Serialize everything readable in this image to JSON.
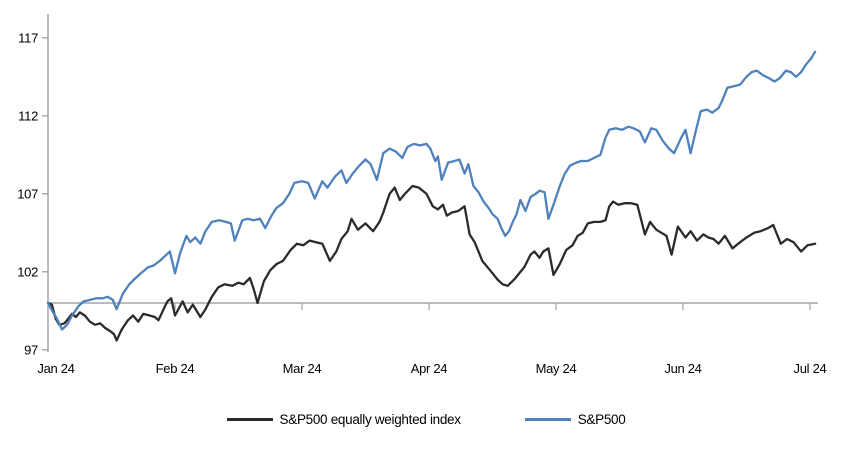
{
  "colors": {
    "equal_weight_line": "#2b2b2b",
    "sp500_line": "#4f81bd",
    "axis": "#a0a0a0",
    "baseline": "#a6a6a6",
    "text": "#000000",
    "background": "#ffffff"
  },
  "chart_data": {
    "type": "line",
    "title": "",
    "xlabel": "",
    "ylabel": "",
    "x_axis": {
      "unit": "months since Jan 2024",
      "tick_labels": [
        "Jan 24",
        "Feb 24",
        "Mar 24",
        "Apr 24",
        "May 24",
        "Jun 24",
        "Jul 24"
      ],
      "tick_positions_months": [
        0,
        1,
        2,
        3,
        4,
        5,
        6
      ]
    },
    "y_axis": {
      "tick_labels": [
        "97",
        "102",
        "107",
        "112",
        "117"
      ],
      "ticks": [
        97,
        102,
        107,
        112,
        117
      ],
      "range": [
        97,
        118.5
      ],
      "reference_line": 100
    },
    "grid": false,
    "legend_position": "bottom-center",
    "series": [
      {
        "name": "S&P500 equally weighted index",
        "color": "#2b2b2b",
        "points": [
          [
            0,
            100
          ],
          [
            0.03,
            99.9
          ],
          [
            0.06,
            99
          ],
          [
            0.09,
            98.6
          ],
          [
            0.13,
            98.7
          ],
          [
            0.16,
            99
          ],
          [
            0.19,
            99.3
          ],
          [
            0.22,
            99.1
          ],
          [
            0.25,
            99.4
          ],
          [
            0.29,
            99.2
          ],
          [
            0.33,
            98.8
          ],
          [
            0.37,
            98.6
          ],
          [
            0.41,
            98.7
          ],
          [
            0.45,
            98.4
          ],
          [
            0.49,
            98.2
          ],
          [
            0.52,
            98
          ],
          [
            0.54,
            97.6
          ],
          [
            0.58,
            98.3
          ],
          [
            0.63,
            98.9
          ],
          [
            0.67,
            99.2
          ],
          [
            0.71,
            98.8
          ],
          [
            0.75,
            99.3
          ],
          [
            0.8,
            99.2
          ],
          [
            0.84,
            99.1
          ],
          [
            0.87,
            98.9
          ],
          [
            0.91,
            99.6
          ],
          [
            0.94,
            100.1
          ],
          [
            0.97,
            100.3
          ],
          [
            1,
            99.2
          ],
          [
            1.06,
            100.1
          ],
          [
            1.1,
            99.4
          ],
          [
            1.14,
            99.9
          ],
          [
            1.2,
            99.1
          ],
          [
            1.24,
            99.6
          ],
          [
            1.29,
            100.4
          ],
          [
            1.34,
            101
          ],
          [
            1.39,
            101.2
          ],
          [
            1.45,
            101.1
          ],
          [
            1.5,
            101.3
          ],
          [
            1.54,
            101.2
          ],
          [
            1.59,
            101.6
          ],
          [
            1.62,
            100.9
          ],
          [
            1.65,
            100
          ],
          [
            1.7,
            101.4
          ],
          [
            1.75,
            102.1
          ],
          [
            1.8,
            102.5
          ],
          [
            1.85,
            102.7
          ],
          [
            1.91,
            103.4
          ],
          [
            1.96,
            103.8
          ],
          [
            2.01,
            103.7
          ],
          [
            2.06,
            104
          ],
          [
            2.11,
            103.9
          ],
          [
            2.16,
            103.8
          ],
          [
            2.22,
            102.7
          ],
          [
            2.27,
            103.3
          ],
          [
            2.31,
            104.1
          ],
          [
            2.36,
            104.6
          ],
          [
            2.39,
            105.4
          ],
          [
            2.44,
            104.7
          ],
          [
            2.5,
            105.1
          ],
          [
            2.56,
            104.6
          ],
          [
            2.61,
            105.2
          ],
          [
            2.64,
            105.8
          ],
          [
            2.69,
            107
          ],
          [
            2.73,
            107.4
          ],
          [
            2.77,
            106.6
          ],
          [
            2.81,
            107
          ],
          [
            2.87,
            107.5
          ],
          [
            2.92,
            107.4
          ],
          [
            2.98,
            107
          ],
          [
            3.03,
            106.2
          ],
          [
            3.07,
            106
          ],
          [
            3.11,
            106.3
          ],
          [
            3.14,
            105.6
          ],
          [
            3.18,
            105.8
          ],
          [
            3.23,
            105.9
          ],
          [
            3.28,
            106.2
          ],
          [
            3.32,
            104.4
          ],
          [
            3.36,
            103.9
          ],
          [
            3.42,
            102.7
          ],
          [
            3.48,
            102.1
          ],
          [
            3.54,
            101.5
          ],
          [
            3.58,
            101.2
          ],
          [
            3.62,
            101.1
          ],
          [
            3.67,
            101.5
          ],
          [
            3.71,
            101.9
          ],
          [
            3.75,
            102.3
          ],
          [
            3.8,
            103.1
          ],
          [
            3.83,
            103.3
          ],
          [
            3.87,
            102.9
          ],
          [
            3.9,
            103.3
          ],
          [
            3.94,
            103.5
          ],
          [
            3.98,
            101.8
          ],
          [
            4.03,
            102.5
          ],
          [
            4.08,
            103.4
          ],
          [
            4.13,
            103.7
          ],
          [
            4.17,
            104.3
          ],
          [
            4.21,
            104.5
          ],
          [
            4.25,
            105.1
          ],
          [
            4.3,
            105.2
          ],
          [
            4.35,
            105.2
          ],
          [
            4.39,
            105.3
          ],
          [
            4.42,
            106.2
          ],
          [
            4.45,
            106.5
          ],
          [
            4.49,
            106.3
          ],
          [
            4.54,
            106.4
          ],
          [
            4.59,
            106.4
          ],
          [
            4.64,
            106.3
          ],
          [
            4.7,
            104.4
          ],
          [
            4.74,
            105.2
          ],
          [
            4.79,
            104.7
          ],
          [
            4.83,
            104.5
          ],
          [
            4.87,
            104.3
          ],
          [
            4.91,
            103.1
          ],
          [
            4.96,
            104.9
          ],
          [
            5.02,
            104.2
          ],
          [
            5.06,
            104.6
          ],
          [
            5.11,
            104
          ],
          [
            5.16,
            104.4
          ],
          [
            5.2,
            104.2
          ],
          [
            5.24,
            104.1
          ],
          [
            5.28,
            103.8
          ],
          [
            5.33,
            104.3
          ],
          [
            5.39,
            103.5
          ],
          [
            5.45,
            103.9
          ],
          [
            5.5,
            104.2
          ],
          [
            5.56,
            104.5
          ],
          [
            5.61,
            104.6
          ],
          [
            5.67,
            104.8
          ],
          [
            5.71,
            105
          ],
          [
            5.77,
            103.8
          ],
          [
            5.82,
            104.1
          ],
          [
            5.87,
            103.9
          ],
          [
            5.93,
            103.3
          ],
          [
            5.98,
            103.7
          ],
          [
            6.04,
            103.8
          ]
        ]
      },
      {
        "name": "S&P500",
        "color": "#4f81bd",
        "points": [
          [
            0,
            100
          ],
          [
            0.04,
            99.4
          ],
          [
            0.07,
            99
          ],
          [
            0.11,
            98.3
          ],
          [
            0.15,
            98.6
          ],
          [
            0.19,
            99.2
          ],
          [
            0.24,
            99.8
          ],
          [
            0.28,
            100.1
          ],
          [
            0.33,
            100.2
          ],
          [
            0.38,
            100.3
          ],
          [
            0.43,
            100.3
          ],
          [
            0.47,
            100.4
          ],
          [
            0.51,
            100.2
          ],
          [
            0.54,
            99.6
          ],
          [
            0.59,
            100.6
          ],
          [
            0.64,
            101.2
          ],
          [
            0.69,
            101.6
          ],
          [
            0.73,
            101.9
          ],
          [
            0.79,
            102.3
          ],
          [
            0.83,
            102.4
          ],
          [
            0.88,
            102.7
          ],
          [
            0.92,
            103
          ],
          [
            0.96,
            103.3
          ],
          [
            1,
            101.9
          ],
          [
            1.04,
            103.2
          ],
          [
            1.09,
            104.3
          ],
          [
            1.12,
            103.9
          ],
          [
            1.16,
            104.2
          ],
          [
            1.2,
            103.8
          ],
          [
            1.24,
            104.6
          ],
          [
            1.29,
            105.2
          ],
          [
            1.35,
            105.3
          ],
          [
            1.4,
            105.2
          ],
          [
            1.44,
            105.1
          ],
          [
            1.47,
            104
          ],
          [
            1.53,
            105.3
          ],
          [
            1.57,
            105.4
          ],
          [
            1.62,
            105.3
          ],
          [
            1.67,
            105.4
          ],
          [
            1.71,
            104.8
          ],
          [
            1.76,
            105.6
          ],
          [
            1.8,
            106.1
          ],
          [
            1.85,
            106.4
          ],
          [
            1.9,
            107
          ],
          [
            1.94,
            107.7
          ],
          [
            2,
            107.8
          ],
          [
            2.05,
            107.7
          ],
          [
            2.1,
            106.7
          ],
          [
            2.16,
            107.8
          ],
          [
            2.2,
            107.4
          ],
          [
            2.26,
            108.1
          ],
          [
            2.31,
            108.5
          ],
          [
            2.35,
            107.7
          ],
          [
            2.4,
            108.3
          ],
          [
            2.45,
            108.8
          ],
          [
            2.5,
            109.2
          ],
          [
            2.54,
            108.9
          ],
          [
            2.59,
            107.9
          ],
          [
            2.64,
            109.6
          ],
          [
            2.69,
            109.9
          ],
          [
            2.74,
            109.7
          ],
          [
            2.79,
            109.3
          ],
          [
            2.83,
            110
          ],
          [
            2.88,
            110.2
          ],
          [
            2.93,
            110.1
          ],
          [
            2.98,
            110.2
          ],
          [
            3.01,
            109.9
          ],
          [
            3.05,
            109.1
          ],
          [
            3.07,
            109.4
          ],
          [
            3.1,
            107.9
          ],
          [
            3.15,
            109
          ],
          [
            3.2,
            109.1
          ],
          [
            3.24,
            109.2
          ],
          [
            3.28,
            108.3
          ],
          [
            3.31,
            108.9
          ],
          [
            3.35,
            107.5
          ],
          [
            3.39,
            107.1
          ],
          [
            3.43,
            106.5
          ],
          [
            3.46,
            106.2
          ],
          [
            3.5,
            105.7
          ],
          [
            3.54,
            105.4
          ],
          [
            3.57,
            104.8
          ],
          [
            3.6,
            104.3
          ],
          [
            3.63,
            104.6
          ],
          [
            3.66,
            105.2
          ],
          [
            3.69,
            105.7
          ],
          [
            3.72,
            106.6
          ],
          [
            3.76,
            105.9
          ],
          [
            3.8,
            106.8
          ],
          [
            3.84,
            107
          ],
          [
            3.87,
            107.2
          ],
          [
            3.91,
            107.1
          ],
          [
            3.94,
            105.4
          ],
          [
            3.98,
            106.3
          ],
          [
            4.03,
            107.5
          ],
          [
            4.07,
            108.3
          ],
          [
            4.11,
            108.8
          ],
          [
            4.16,
            109
          ],
          [
            4.2,
            109.1
          ],
          [
            4.25,
            109.1
          ],
          [
            4.3,
            109.3
          ],
          [
            4.35,
            109.5
          ],
          [
            4.39,
            110.6
          ],
          [
            4.42,
            111.1
          ],
          [
            4.47,
            111.2
          ],
          [
            4.52,
            111.1
          ],
          [
            4.57,
            111.3
          ],
          [
            4.61,
            111.2
          ],
          [
            4.66,
            111
          ],
          [
            4.7,
            110.3
          ],
          [
            4.75,
            111.2
          ],
          [
            4.79,
            111.1
          ],
          [
            4.84,
            110.4
          ],
          [
            4.89,
            109.9
          ],
          [
            4.93,
            109.6
          ],
          [
            4.98,
            110.5
          ],
          [
            5.02,
            111.1
          ],
          [
            5.06,
            109.6
          ],
          [
            5.1,
            111
          ],
          [
            5.14,
            112.3
          ],
          [
            5.19,
            112.4
          ],
          [
            5.23,
            112.2
          ],
          [
            5.28,
            112.5
          ],
          [
            5.31,
            113
          ],
          [
            5.35,
            113.8
          ],
          [
            5.4,
            113.9
          ],
          [
            5.45,
            114
          ],
          [
            5.5,
            114.5
          ],
          [
            5.54,
            114.8
          ],
          [
            5.58,
            114.9
          ],
          [
            5.63,
            114.6
          ],
          [
            5.68,
            114.4
          ],
          [
            5.72,
            114.2
          ],
          [
            5.76,
            114.4
          ],
          [
            5.81,
            114.9
          ],
          [
            5.85,
            114.8
          ],
          [
            5.89,
            114.5
          ],
          [
            5.93,
            114.8
          ],
          [
            5.97,
            115.3
          ],
          [
            6.01,
            115.7
          ],
          [
            6.04,
            116.1
          ]
        ]
      }
    ]
  },
  "legend": {
    "equal_weight_label": "S&P500 equally weighted index",
    "sp500_label": "S&P500"
  }
}
